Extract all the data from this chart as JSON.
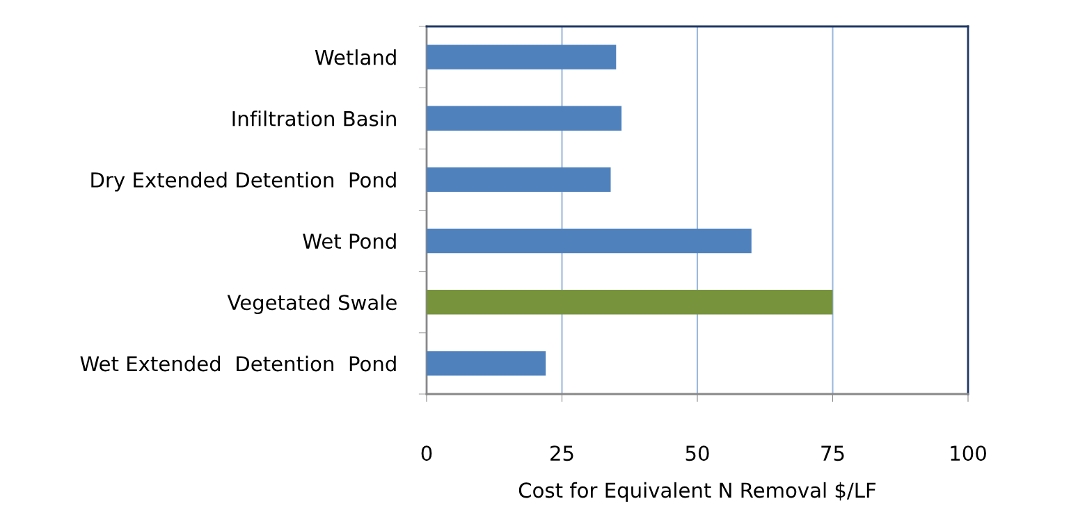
{
  "chart_data": {
    "type": "bar",
    "orientation": "horizontal",
    "xlabel": "Cost for Equivalent N Removal $/LF",
    "categories": [
      "Wetland",
      "Infiltration Basin",
      "Dry Extended Detention  Pond",
      "Wet Pond",
      "Vegetated Swale",
      "Wet Extended  Detention  Pond"
    ],
    "values": [
      35,
      36,
      34,
      60,
      75,
      22
    ],
    "colors": [
      "#4f81bd",
      "#4f81bd",
      "#4f81bd",
      "#4f81bd",
      "#77933c",
      "#4f81bd"
    ],
    "xlim": [
      0,
      100
    ],
    "xticks": [
      0,
      25,
      50,
      75,
      100
    ],
    "grid": "x"
  }
}
